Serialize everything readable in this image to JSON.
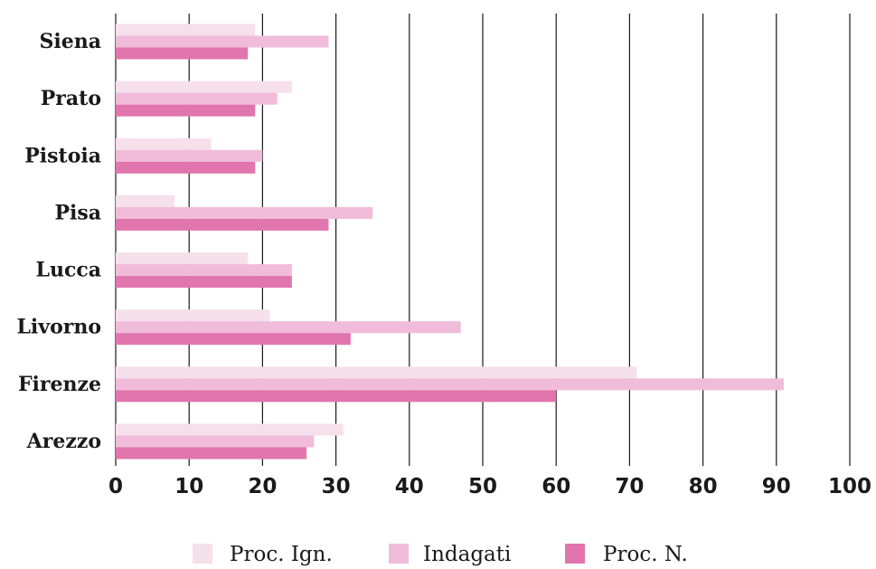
{
  "chart_data": {
    "type": "bar",
    "orientation": "horizontal",
    "categories": [
      "Siena",
      "Prato",
      "Pistoia",
      "Pisa",
      "Lucca",
      "Livorno",
      "Firenze",
      "Arezzo"
    ],
    "series": [
      {
        "name": "Proc. Ign.",
        "color": "#f5e0ec",
        "values": [
          19,
          24,
          13,
          8,
          18,
          21,
          71,
          31
        ]
      },
      {
        "name": "Indagati",
        "color": "#f0bcd9",
        "values": [
          29,
          22,
          20,
          35,
          24,
          47,
          91,
          27
        ]
      },
      {
        "name": "Proc. N.",
        "color": "#e175ad",
        "values": [
          18,
          19,
          19,
          29,
          24,
          32,
          60,
          26
        ]
      }
    ],
    "xlim": [
      0,
      100
    ],
    "xticks": [
      "0",
      "10",
      "20",
      "30",
      "40",
      "50",
      "60",
      "70",
      "80",
      "90",
      "100"
    ],
    "grid": "vertical",
    "legend_position": "bottom-center"
  }
}
